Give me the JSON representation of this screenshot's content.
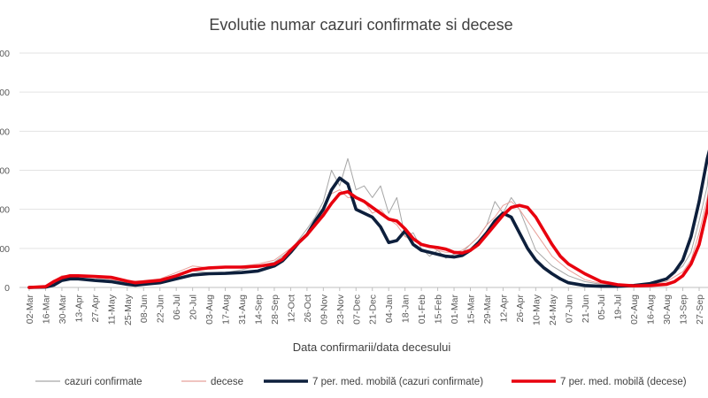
{
  "chart_data": {
    "type": "line",
    "title": "Evolutie numar cazuri confirmate si decese",
    "xlabel": "Data confirmarii/data decesului",
    "ylabel": "",
    "x_tick_labels": [
      "02-Mar",
      "16-Mar",
      "30-Mar",
      "13-Apr",
      "27-Apr",
      "11-May",
      "25-May",
      "08-Jun",
      "22-Jun",
      "06-Jul",
      "20-Jul",
      "03-Aug",
      "17-Aug",
      "31-Aug",
      "14-Sep",
      "28-Sep",
      "12-Oct",
      "26-Oct",
      "09-Nov",
      "23-Nov",
      "07-Dec",
      "21-Dec",
      "04-Jan",
      "18-Jan",
      "01-Feb",
      "15-Feb",
      "01-Mar",
      "15-Mar",
      "29-Mar",
      "12-Apr",
      "26-Apr",
      "10-May",
      "24-May",
      "07-Jun",
      "21-Jun",
      "05-Jul",
      "19-Jul",
      "02-Aug",
      "16-Aug",
      "30-Aug",
      "13-Sep",
      "27-Sep"
    ],
    "y_tick_labels": [
      "0",
      "00",
      "00",
      "00",
      "00",
      "000",
      "000"
    ],
    "ylim": [
      0,
      6
    ],
    "grid": "horizontal",
    "legend_position": "bottom",
    "series": [
      {
        "name": "cazuri confirmate",
        "color": "#a6a6a6",
        "style": "thin",
        "x": [
          0,
          1,
          2,
          3,
          4,
          5,
          6,
          7,
          8,
          9,
          10,
          11,
          12,
          13,
          14,
          15,
          16,
          17,
          17.5,
          18,
          18.5,
          19,
          19.5,
          20,
          20.5,
          21,
          21.5,
          22,
          22.5,
          23,
          23.5,
          24,
          24.5,
          25,
          25.5,
          26,
          26.5,
          27,
          27.5,
          28,
          28.5,
          29,
          29.5,
          30,
          31,
          32,
          33,
          34,
          35,
          36,
          37,
          38,
          39,
          40,
          40.5,
          41,
          41.5,
          42
        ],
        "values": [
          0,
          0.02,
          0.25,
          0.28,
          0.25,
          0.2,
          0.12,
          0.15,
          0.2,
          0.32,
          0.42,
          0.38,
          0.38,
          0.45,
          0.55,
          0.65,
          0.95,
          1.5,
          1.8,
          2.2,
          3.0,
          2.6,
          3.3,
          2.5,
          2.6,
          2.3,
          2.6,
          1.9,
          2.3,
          1.3,
          1.4,
          1.0,
          0.8,
          0.95,
          0.75,
          0.85,
          0.9,
          1.1,
          1.3,
          1.6,
          2.2,
          1.9,
          2.3,
          2.0,
          0.95,
          0.55,
          0.3,
          0.15,
          0.08,
          0.06,
          0.05,
          0.1,
          0.22,
          0.55,
          0.9,
          1.7,
          2.6,
          5.0
        ]
      },
      {
        "name": "decese",
        "color": "#e8a09a",
        "style": "thin",
        "x": [
          0,
          1,
          2,
          3,
          4,
          5,
          6,
          7,
          8,
          9,
          10,
          11,
          12,
          13,
          14,
          15,
          16,
          17,
          17.5,
          18,
          18.5,
          19,
          19.5,
          20,
          20.5,
          21,
          21.5,
          22,
          22.5,
          23,
          23.5,
          24,
          24.5,
          25,
          25.5,
          26,
          26.5,
          27,
          27.5,
          28,
          28.5,
          29,
          29.5,
          30,
          31,
          32,
          33,
          34,
          35,
          36,
          37,
          38,
          39,
          40,
          40.5,
          41,
          41.5,
          42
        ],
        "values": [
          0,
          0.05,
          0.3,
          0.32,
          0.28,
          0.2,
          0.15,
          0.18,
          0.22,
          0.38,
          0.55,
          0.5,
          0.5,
          0.55,
          0.6,
          0.7,
          1.0,
          1.4,
          1.7,
          2.0,
          2.4,
          2.5,
          2.3,
          2.3,
          2.2,
          1.9,
          2.0,
          1.75,
          1.6,
          1.3,
          1.2,
          1.1,
          1.05,
          0.95,
          0.9,
          0.9,
          0.95,
          1.1,
          1.3,
          1.6,
          1.8,
          2.1,
          2.2,
          2.0,
          1.4,
          0.8,
          0.45,
          0.2,
          0.1,
          0.06,
          0.05,
          0.08,
          0.15,
          0.4,
          0.7,
          1.4,
          2.3,
          3.8
        ]
      },
      {
        "name": "7 per. med. mobilă (cazuri confirmate)",
        "color": "#0d1f3c",
        "style": "thick",
        "x": [
          0,
          1,
          1.5,
          2,
          2.5,
          3,
          4,
          5,
          6,
          6.5,
          7,
          8,
          9,
          10,
          11,
          12,
          13,
          14,
          15,
          15.5,
          16,
          16.5,
          17,
          17.5,
          18,
          18.5,
          19,
          19.5,
          20,
          20.5,
          21,
          21.5,
          22,
          22.5,
          23,
          23.5,
          24,
          24.5,
          25,
          25.5,
          26,
          26.5,
          27,
          27.5,
          28,
          28.5,
          29,
          29.5,
          30,
          30.5,
          31,
          31.5,
          32,
          32.5,
          33,
          34,
          35,
          36,
          37,
          38,
          39,
          39.5,
          40,
          40.5,
          41,
          41.5,
          42
        ],
        "values": [
          0,
          0.01,
          0.06,
          0.18,
          0.22,
          0.22,
          0.18,
          0.15,
          0.08,
          0.06,
          0.08,
          0.12,
          0.22,
          0.32,
          0.35,
          0.36,
          0.38,
          0.42,
          0.55,
          0.68,
          0.9,
          1.15,
          1.35,
          1.7,
          2.0,
          2.5,
          2.8,
          2.65,
          2.0,
          1.9,
          1.8,
          1.55,
          1.15,
          1.2,
          1.45,
          1.1,
          0.95,
          0.9,
          0.85,
          0.8,
          0.78,
          0.82,
          0.95,
          1.15,
          1.4,
          1.7,
          1.9,
          1.8,
          1.4,
          1.0,
          0.7,
          0.5,
          0.35,
          0.22,
          0.12,
          0.05,
          0.03,
          0.03,
          0.05,
          0.1,
          0.22,
          0.4,
          0.7,
          1.3,
          2.2,
          3.3,
          4.1
        ]
      },
      {
        "name": "7 per. med. mobilă (decese)",
        "color": "#e8000e",
        "style": "thick",
        "x": [
          0,
          1,
          1.5,
          2,
          2.5,
          3,
          4,
          5,
          6,
          6.5,
          7,
          8,
          9,
          10,
          11,
          12,
          13,
          14,
          15,
          15.5,
          16,
          16.5,
          17,
          17.5,
          18,
          18.5,
          19,
          19.5,
          20,
          20.5,
          21,
          21.5,
          22,
          22.5,
          23,
          23.5,
          24,
          24.5,
          25,
          25.5,
          26,
          26.5,
          27,
          27.5,
          28,
          28.5,
          29,
          29.5,
          30,
          30.5,
          31,
          31.5,
          32,
          32.5,
          33,
          34,
          35,
          36,
          37,
          38,
          39,
          39.5,
          40,
          40.5,
          41,
          41.5,
          42
        ],
        "values": [
          0,
          0.02,
          0.15,
          0.25,
          0.3,
          0.3,
          0.28,
          0.26,
          0.16,
          0.12,
          0.14,
          0.18,
          0.3,
          0.45,
          0.5,
          0.52,
          0.52,
          0.54,
          0.6,
          0.72,
          0.95,
          1.15,
          1.35,
          1.6,
          1.85,
          2.15,
          2.4,
          2.45,
          2.3,
          2.2,
          2.05,
          1.9,
          1.75,
          1.7,
          1.5,
          1.25,
          1.1,
          1.05,
          1.02,
          0.98,
          0.9,
          0.88,
          0.95,
          1.1,
          1.35,
          1.6,
          1.85,
          2.05,
          2.1,
          2.05,
          1.8,
          1.45,
          1.1,
          0.8,
          0.6,
          0.35,
          0.15,
          0.07,
          0.04,
          0.05,
          0.08,
          0.15,
          0.3,
          0.6,
          1.1,
          2.0,
          3.4
        ]
      }
    ]
  }
}
